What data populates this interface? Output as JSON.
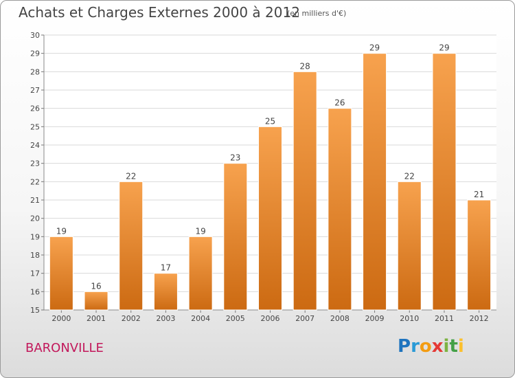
{
  "header": {
    "title": "Achats et Charges Externes 2000 à 2012",
    "subtitle": "(en milliers d'€)"
  },
  "footer": {
    "town": "BARONVILLE",
    "logo_letters": [
      "P",
      "r",
      "o",
      "x",
      "i",
      "t",
      "i"
    ]
  },
  "colors": {
    "bar_top": "#f7a24e",
    "bar_bottom": "#cc6a12",
    "town": "#c2185b"
  },
  "chart_data": {
    "type": "bar",
    "title": "Achats et Charges Externes 2000 à 2012",
    "subtitle": "(en milliers d'€)",
    "xlabel": "",
    "ylabel": "",
    "categories": [
      "2000",
      "2001",
      "2002",
      "2003",
      "2004",
      "2005",
      "2006",
      "2007",
      "2008",
      "2009",
      "2010",
      "2011",
      "2012"
    ],
    "values": [
      19,
      16,
      22,
      17,
      19,
      23,
      25,
      28,
      26,
      29,
      22,
      29,
      21
    ],
    "ylim": [
      15,
      30
    ],
    "yticks": [
      "15",
      "16",
      "17",
      "18",
      "19",
      "20",
      "21",
      "22",
      "23",
      "24",
      "25",
      "26",
      "27",
      "28",
      "29",
      "30"
    ],
    "grid": true,
    "legend": "none"
  }
}
